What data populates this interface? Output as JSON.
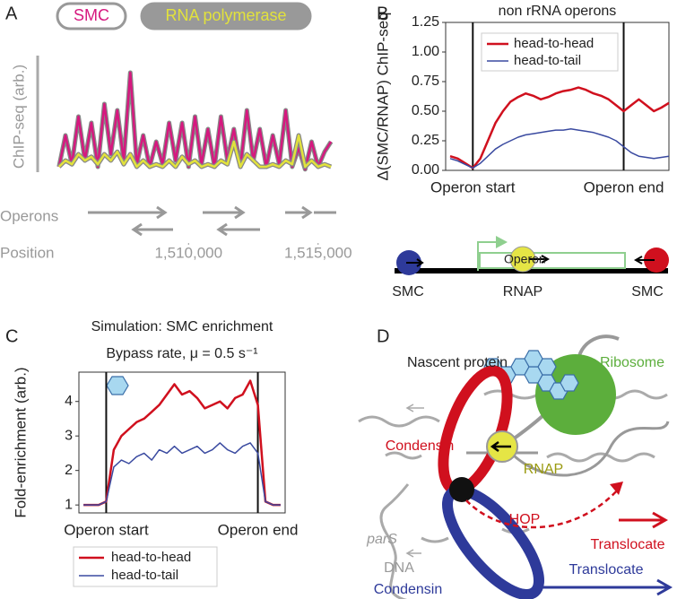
{
  "panel_labels": [
    "A",
    "B",
    "C",
    "D"
  ],
  "chart_data": [
    {
      "type": "line",
      "legend": "top",
      "frame": false,
      "ylabel": "ChIP-seq (arb.)",
      "annotations": [
        "Operons",
        "Position"
      ],
      "xlim": [
        1504800,
        1515700
      ],
      "ylim": [
        0,
        1
      ],
      "xticks": [
        {
          "value": 1510000,
          "label": "1,510,000"
        },
        {
          "value": 1515000,
          "label": "1,515,000"
        }
      ],
      "x": [
        1505000,
        1505250,
        1505500,
        1505750,
        1506000,
        1506250,
        1506500,
        1506750,
        1507000,
        1507250,
        1507500,
        1507750,
        1508000,
        1508250,
        1508500,
        1508750,
        1509000,
        1509250,
        1509500,
        1509750,
        1510000,
        1510250,
        1510500,
        1510750,
        1511000,
        1511250,
        1511500,
        1511750,
        1512000,
        1512250,
        1512500,
        1512750,
        1513000,
        1513250,
        1513500,
        1513750,
        1514000,
        1514250,
        1514500,
        1514750,
        1515000,
        1515250,
        1515500
      ],
      "series": [
        {
          "name": "SMC",
          "color": "#d6187f",
          "values": [
            0.1,
            0.35,
            0.12,
            0.5,
            0.15,
            0.45,
            0.1,
            0.6,
            0.2,
            0.55,
            0.15,
            0.85,
            0.12,
            0.35,
            0.1,
            0.3,
            0.12,
            0.45,
            0.15,
            0.45,
            0.1,
            0.5,
            0.12,
            0.4,
            0.1,
            0.5,
            0.15,
            0.4,
            0.1,
            0.55,
            0.15,
            0.4,
            0.1,
            0.35,
            0.12,
            0.55,
            0.1,
            0.25,
            0.08,
            0.3,
            0.1,
            0.22,
            0.3
          ]
        },
        {
          "name": "RNA polymerase",
          "color": "#e2e23c",
          "values": [
            0.1,
            0.15,
            0.12,
            0.2,
            0.15,
            0.18,
            0.12,
            0.2,
            0.15,
            0.22,
            0.12,
            0.2,
            0.1,
            0.15,
            0.1,
            0.12,
            0.1,
            0.15,
            0.1,
            0.18,
            0.12,
            0.15,
            0.1,
            0.12,
            0.1,
            0.15,
            0.12,
            0.3,
            0.1,
            0.2,
            0.15,
            0.1,
            0.1,
            0.12,
            0.1,
            0.15,
            0.12,
            0.35,
            0.1,
            0.15,
            0.1,
            0.12,
            0.1
          ]
        }
      ]
    },
    {
      "type": "line",
      "legend": "upper right",
      "frame": true,
      "title": "non rRNA operons",
      "ylabel": "Δ(SMC/RNAP) ChIP-seq",
      "xlim": [
        -0.18,
        1.3
      ],
      "ylim": [
        0,
        1.25
      ],
      "xticks": [
        {
          "value": 0,
          "label": "Operon start"
        },
        {
          "value": 1,
          "label": "Operon end"
        }
      ],
      "yticks": [
        {
          "value": 0,
          "label": "0.00"
        },
        {
          "value": 0.25,
          "label": "0.25"
        },
        {
          "value": 0.5,
          "label": "0.50"
        },
        {
          "value": 0.75,
          "label": "0.75"
        },
        {
          "value": 1,
          "label": "1.00"
        },
        {
          "value": 1.25,
          "label": "1.25"
        }
      ],
      "x": [
        -0.15,
        -0.1,
        -0.05,
        0,
        0.05,
        0.1,
        0.15,
        0.2,
        0.25,
        0.3,
        0.35,
        0.4,
        0.45,
        0.5,
        0.55,
        0.6,
        0.65,
        0.7,
        0.75,
        0.8,
        0.85,
        0.9,
        0.95,
        1,
        1.05,
        1.1,
        1.15,
        1.2,
        1.25,
        1.3
      ],
      "series": [
        {
          "name": "head-to-head",
          "color": "#d0101e",
          "values": [
            0.12,
            0.1,
            0.06,
            0.02,
            0.1,
            0.25,
            0.4,
            0.5,
            0.58,
            0.62,
            0.65,
            0.63,
            0.6,
            0.62,
            0.65,
            0.67,
            0.68,
            0.7,
            0.68,
            0.65,
            0.63,
            0.6,
            0.55,
            0.5,
            0.55,
            0.6,
            0.55,
            0.5,
            0.53,
            0.57
          ]
        },
        {
          "name": "head-to-tail",
          "color": "#3a4aa0",
          "values": [
            0.1,
            0.08,
            0.05,
            0.02,
            0.06,
            0.12,
            0.18,
            0.22,
            0.25,
            0.28,
            0.3,
            0.31,
            0.32,
            0.33,
            0.34,
            0.34,
            0.35,
            0.34,
            0.33,
            0.32,
            0.3,
            0.28,
            0.25,
            0.2,
            0.15,
            0.12,
            0.11,
            0.1,
            0.11,
            0.12
          ]
        }
      ]
    },
    {
      "type": "line",
      "legend": "below",
      "frame": true,
      "title": "Simulation: SMC enrichment",
      "subtitle": "Bypass rate, μ = 0.5 s⁻¹",
      "ylabel": "Fold-enrichment  (arb.)",
      "xlim": [
        -0.18,
        1.18
      ],
      "ylim": [
        0.77,
        4.85
      ],
      "xticks": [
        {
          "value": 0,
          "label": "Operon start"
        },
        {
          "value": 1,
          "label": "Operon end"
        }
      ],
      "yticks": [
        1,
        2,
        3,
        4
      ],
      "x": [
        -0.15,
        -0.1,
        -0.05,
        0,
        0.05,
        0.1,
        0.15,
        0.2,
        0.25,
        0.3,
        0.35,
        0.4,
        0.45,
        0.5,
        0.55,
        0.6,
        0.65,
        0.7,
        0.75,
        0.8,
        0.85,
        0.9,
        0.95,
        1,
        1.05,
        1.1,
        1.15
      ],
      "series": [
        {
          "name": "head-to-head",
          "color": "#d0101e",
          "values": [
            1,
            1,
            1,
            1.1,
            2.6,
            3.0,
            3.2,
            3.4,
            3.5,
            3.7,
            3.9,
            4.2,
            4.5,
            4.2,
            4.3,
            4.1,
            3.8,
            3.9,
            4.0,
            3.8,
            4.1,
            4.2,
            4.6,
            3.9,
            1.1,
            1,
            1
          ]
        },
        {
          "name": "head-to-tail",
          "color": "#3a4aa0",
          "values": [
            1,
            1,
            1,
            1.1,
            2.1,
            2.3,
            2.2,
            2.4,
            2.5,
            2.3,
            2.6,
            2.5,
            2.7,
            2.5,
            2.6,
            2.7,
            2.5,
            2.6,
            2.8,
            2.6,
            2.5,
            2.7,
            2.8,
            2.5,
            1.1,
            1,
            1
          ]
        }
      ]
    }
  ],
  "schematic": {
    "operon": "Operon",
    "left": "SMC",
    "middle": "RNAP",
    "right": "SMC"
  },
  "diagram": {
    "nascent_protein": "Nascent protein",
    "ribosome": "Ribosome",
    "condensin_top": "Condensin",
    "rnap": "RNAP",
    "pars": "parS",
    "hop": "HOP",
    "translocate_red": "Translocate",
    "dna": "DNA",
    "translocate_blue": "Translocate",
    "condensin_bottom": "Condensin"
  }
}
